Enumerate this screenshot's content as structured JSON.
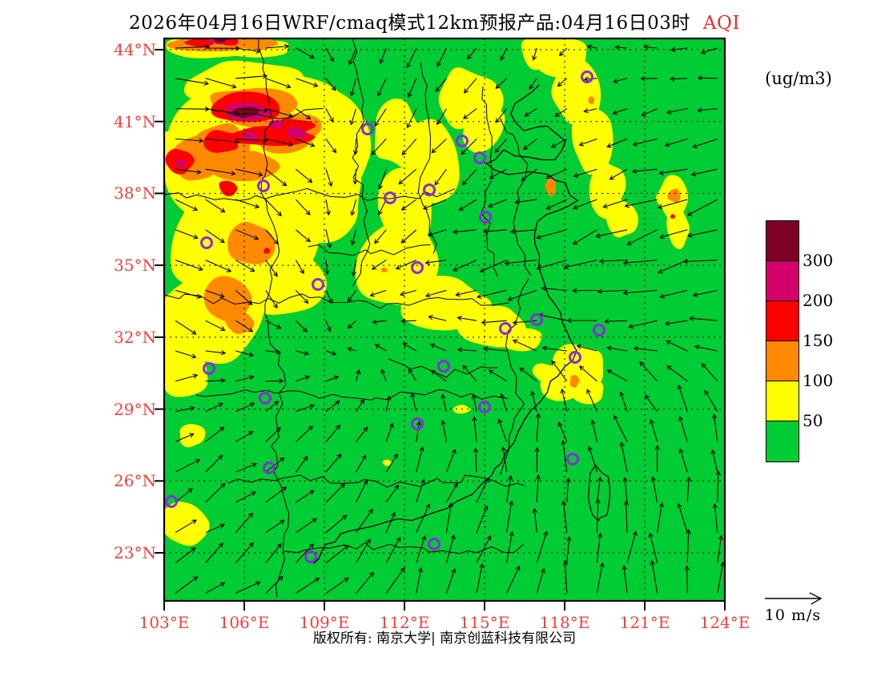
{
  "title": {
    "text": "2026年04月16日WRF/cmaq模式12km预报产品:04月16日03时",
    "highlight": "AQI",
    "highlight_color": "#ee2c2c"
  },
  "unit_label": "(ug/m3)",
  "wind_legend": {
    "label": "10 m/s"
  },
  "footer": {
    "copyright": "版权所有: 南京大学| 南京创蓝科技有限公司"
  },
  "axes": {
    "lat_ticks": [
      "44°N",
      "41°N",
      "38°N",
      "35°N",
      "32°N",
      "29°N",
      "26°N",
      "23°N"
    ],
    "lon_ticks": [
      "103°E",
      "106°E",
      "109°E",
      "112°E",
      "115°E",
      "118°E",
      "121°E",
      "124°E"
    ],
    "tick_label_color": "#f2403a"
  },
  "colorbar": {
    "labels_top_to_bottom": [
      "300",
      "200",
      "150",
      "100",
      "50"
    ],
    "colors_top_to_bottom": [
      "#7e0026",
      "#d4006a",
      "#ff0000",
      "#ff8a00",
      "#ffff00",
      "#00cc33"
    ]
  },
  "map": {
    "background": "#00cc33",
    "marker_color": "#8b2be2",
    "grid_color": "#000000",
    "levels": [
      {
        "name": "aqi-50-100",
        "color": "#ffff00",
        "blobs": [
          [
            120,
            140,
            120,
            100
          ],
          [
            150,
            90,
            95,
            55
          ],
          [
            90,
            250,
            95,
            85
          ],
          [
            60,
            350,
            72,
            62
          ],
          [
            35,
            150,
            48,
            45
          ],
          [
            190,
            200,
            62,
            50
          ],
          [
            140,
            305,
            58,
            45
          ],
          [
            105,
            55,
            80,
            30
          ],
          [
            220,
            130,
            45,
            40
          ],
          [
            20,
            415,
            36,
            30
          ],
          [
            35,
            497,
            18,
            14
          ],
          [
            25,
            608,
            30,
            28
          ],
          [
            378,
            75,
            42,
            38
          ],
          [
            398,
            112,
            30,
            30
          ],
          [
            330,
            150,
            40,
            52
          ],
          [
            300,
            212,
            36,
            46
          ],
          [
            292,
            282,
            55,
            58
          ],
          [
            345,
            330,
            58,
            32
          ],
          [
            412,
            358,
            42,
            26
          ],
          [
            292,
            120,
            30,
            40
          ],
          [
            360,
            345,
            45,
            22
          ],
          [
            410,
            362,
            38,
            20
          ],
          [
            446,
            378,
            28,
            16
          ],
          [
            495,
            22,
            34,
            24
          ],
          [
            514,
            70,
            28,
            40
          ],
          [
            534,
            130,
            25,
            45
          ],
          [
            554,
            186,
            22,
            34
          ],
          [
            571,
            224,
            19,
            26
          ],
          [
            468,
            18,
            26,
            22
          ],
          [
            635,
            200,
            20,
            26
          ],
          [
            641,
            237,
            15,
            24
          ],
          [
            515,
            410,
            34,
            28
          ],
          [
            494,
            436,
            24,
            20
          ],
          [
            531,
            441,
            21,
            16
          ],
          [
            476,
            417,
            16,
            11
          ],
          [
            371,
            463,
            11,
            5
          ],
          [
            278,
            530,
            5,
            4
          ],
          [
            60,
            10,
            70,
            14
          ],
          [
            120,
            12,
            40,
            12
          ]
        ]
      },
      {
        "name": "aqi-100-150",
        "color": "#ff8a00",
        "blobs": [
          [
            60,
            6,
            58,
            9
          ],
          [
            115,
            7,
            25,
            8
          ],
          [
            105,
            85,
            55,
            26
          ],
          [
            70,
            130,
            42,
            24
          ],
          [
            145,
            122,
            40,
            20
          ],
          [
            95,
            158,
            48,
            18
          ],
          [
            35,
            150,
            30,
            30
          ],
          [
            170,
            108,
            32,
            16
          ],
          [
            110,
            255,
            30,
            27
          ],
          [
            78,
            325,
            30,
            28
          ],
          [
            95,
            355,
            20,
            15
          ],
          [
            483,
            185,
            7,
            12
          ],
          [
            637,
            196,
            9,
            9
          ],
          [
            533,
            77,
            4,
            5
          ],
          [
            275,
            289,
            4,
            3
          ],
          [
            512,
            428,
            6,
            7
          ]
        ]
      },
      {
        "name": "aqi-150-200",
        "color": "#ff0000",
        "blobs": [
          [
            45,
            5,
            18,
            6
          ],
          [
            78,
            4,
            14,
            5
          ],
          [
            103,
            86,
            46,
            18
          ],
          [
            130,
            122,
            55,
            13
          ],
          [
            70,
            128,
            25,
            14
          ],
          [
            18,
            153,
            18,
            17
          ],
          [
            80,
            187,
            13,
            11
          ],
          [
            128,
            265,
            4,
            4
          ],
          [
            635,
            222,
            3,
            3
          ],
          [
            160,
            110,
            28,
            10
          ]
        ]
      },
      {
        "name": "aqi-200-300",
        "color": "#d4006a",
        "blobs": [
          [
            103,
            91,
            29,
            11
          ],
          [
            108,
            122,
            9,
            7
          ],
          [
            165,
            118,
            12,
            7
          ],
          [
            21,
            156,
            7,
            6
          ],
          [
            68,
            3,
            10,
            4
          ],
          [
            140,
            108,
            10,
            6
          ]
        ]
      },
      {
        "name": "aqi-300plus",
        "color": "#7e0026",
        "blobs": [
          [
            103,
            92,
            18,
            7
          ],
          [
            71,
            2,
            7,
            3
          ]
        ]
      }
    ],
    "city_markers": [
      [
        124,
        184
      ],
      [
        254,
        113
      ],
      [
        372,
        128
      ],
      [
        394,
        149
      ],
      [
        331,
        189
      ],
      [
        282,
        199
      ],
      [
        401,
        223
      ],
      [
        528,
        48
      ],
      [
        53,
        255
      ],
      [
        192,
        307
      ],
      [
        56,
        412
      ],
      [
        126,
        449
      ],
      [
        316,
        286
      ],
      [
        426,
        362
      ],
      [
        349,
        409
      ],
      [
        400,
        460
      ],
      [
        465,
        351
      ],
      [
        543,
        364
      ],
      [
        513,
        398
      ],
      [
        131,
        536
      ],
      [
        9,
        578
      ],
      [
        183,
        647
      ],
      [
        316,
        481
      ],
      [
        337,
        631
      ],
      [
        510,
        525
      ]
    ]
  }
}
